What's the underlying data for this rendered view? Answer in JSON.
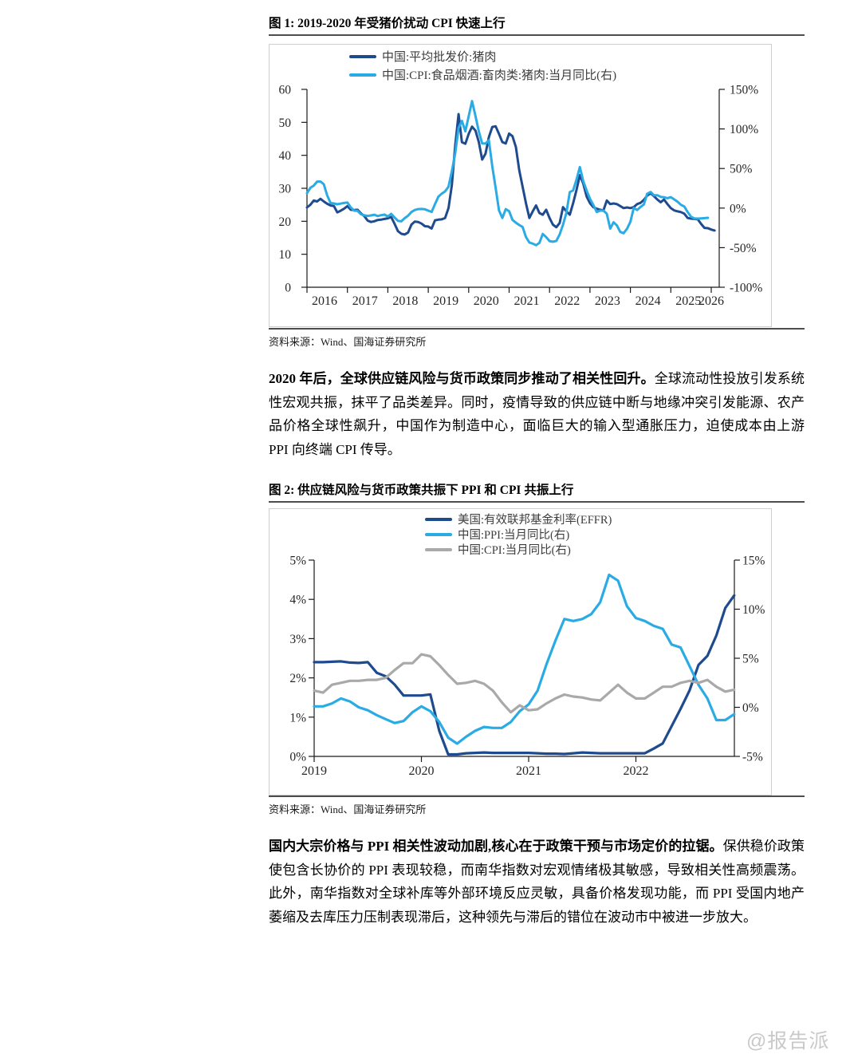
{
  "page": {
    "watermark": "@报告派"
  },
  "figure1": {
    "title": "图 1: 2019-2020 年受猪价扰动 CPI 快速上行",
    "source": "资料来源：Wind、国海证券研究所"
  },
  "figure2": {
    "title": "图 2: 供应链风险与货币政策共振下 PPI 和 CPI 共振上行",
    "source": "资料来源：Wind、国海证券研究所"
  },
  "paragraph1": {
    "bold": "2020 年后，全球供应链风险与货币政策同步推动了相关性回升。",
    "text": "全球流动性投放引发系统性宏观共振，抹平了品类差异。同时，疫情导致的供应链中断与地缘冲突引发能源、农产品价格全球性飙升，中国作为制造中心，面临巨大的输入型通胀压力，迫使成本由上游 PPI 向终端 CPI 传导。"
  },
  "paragraph2": {
    "bold": "国内大宗价格与 PPI 相关性波动加剧,核心在于政策干预与市场定价的拉锯。",
    "text": "保供稳价政策使包含长协价的 PPI 表现较稳，而南华指数对宏观情绪极其敏感，导致相关性高频震荡。此外，南华指数对全球补库等外部环境反应灵敏，具备价格发现功能，而 PPI 受国内地产萎缩及去库压力压制表现滞后，这种领先与滞后的错位在波动市中被进一步放大。"
  },
  "chart_data": [
    {
      "type": "line",
      "title": "图 1: 2019-2020 年受猪价扰动 CPI 快速上行",
      "grid": false,
      "legend_position": "top-inset",
      "x_min": 2016,
      "x_max": 2026.2,
      "x_tick_years": [
        2016,
        2017,
        2018,
        2019,
        2020,
        2021,
        2022,
        2023,
        2024,
        2025,
        2026
      ],
      "x_labels_between_ticks": true,
      "left_axis": {
        "min": 0,
        "max": 60,
        "tick_values": [
          0,
          10,
          20,
          30,
          40,
          50,
          60
        ],
        "tick_labels": [
          "0",
          "10",
          "20",
          "30",
          "40",
          "50",
          "60"
        ]
      },
      "right_axis": {
        "min": -100,
        "max": 150,
        "tick_values": [
          -100,
          -50,
          0,
          50,
          100,
          150
        ],
        "tick_labels": [
          "-100%",
          "-50%",
          "0%",
          "50%",
          "100%",
          "150%"
        ]
      },
      "series": [
        {
          "name": "中国:平均批发价:猪肉",
          "axis": "left",
          "color": "#1f4b8e",
          "start_year": 2016,
          "monthly": true,
          "values": [
            24.2,
            25.0,
            26.3,
            26.0,
            26.8,
            26.0,
            25.3,
            24.8,
            24.6,
            22.7,
            23.2,
            23.8,
            24.6,
            23.5,
            23.4,
            23.5,
            22.4,
            21.6,
            20.2,
            19.8,
            20.0,
            20.4,
            20.5,
            20.7,
            20.9,
            21.3,
            19.2,
            17.0,
            16.2,
            16.0,
            16.6,
            19.0,
            19.9,
            19.8,
            19.3,
            18.5,
            18.4,
            17.8,
            20.3,
            20.5,
            20.6,
            21.0,
            24.0,
            31.0,
            43.0,
            52.5,
            44.0,
            43.5,
            46.5,
            48.7,
            47.5,
            44.0,
            38.7,
            40.5,
            45.5,
            48.6,
            48.8,
            46.5,
            44.0,
            43.6,
            46.6,
            45.8,
            42.5,
            35.5,
            30.5,
            25.5,
            21.0,
            23.0,
            24.8,
            22.5,
            22.0,
            23.5,
            21.0,
            19.0,
            18.2,
            19.5,
            24.3,
            23.0,
            22.0,
            25.5,
            29.5,
            34.0,
            31.5,
            27.5,
            25.5,
            24.3,
            23.8,
            23.5,
            23.3,
            26.3,
            25.2,
            25.4,
            25.2,
            24.6,
            24.0,
            24.2,
            24.0,
            24.3,
            25.2,
            25.6,
            26.5,
            27.8,
            28.5,
            27.6,
            26.6,
            25.8,
            26.6,
            25.2,
            24.0,
            23.3,
            23.0,
            22.8,
            22.3,
            21.0,
            20.8,
            20.7,
            20.6,
            19.2,
            18.0,
            17.9,
            17.5,
            17.2
          ]
        },
        {
          "name": "中国:CPI:食品烟酒:畜肉类:猪肉:当月同比(右)",
          "axis": "right",
          "color": "#2aabe4",
          "start_year": 2016,
          "monthly": true,
          "values": [
            18.8,
            25.6,
            28.4,
            33.5,
            33.6,
            30.1,
            16.1,
            6.4,
            5.8,
            4.8,
            5.6,
            6.5,
            7.1,
            0.9,
            -3.2,
            -3.5,
            -7.8,
            -9.1,
            -9.9,
            -9.3,
            -8.4,
            -10.1,
            -9.0,
            -8.3,
            -10.6,
            -7.3,
            -12.0,
            -16.1,
            -16.7,
            -12.8,
            -9.6,
            -4.9,
            -2.4,
            -1.3,
            -1.1,
            -1.5,
            -3.2,
            -4.8,
            5.1,
            14.4,
            18.2,
            21.1,
            27.0,
            46.7,
            69.3,
            101.3,
            110.2,
            97.0,
            116.0,
            135.2,
            116.4,
            96.9,
            81.7,
            81.6,
            85.7,
            52.6,
            25.5,
            -2.8,
            -12.5,
            -1.3,
            -3.9,
            -14.9,
            -18.4,
            -21.4,
            -23.8,
            -36.5,
            -43.5,
            -44.9,
            -46.9,
            -44.0,
            -32.7,
            -36.7,
            -41.6,
            -42.5,
            -41.4,
            -33.3,
            -21.1,
            -6.0,
            20.2,
            22.4,
            36.0,
            51.8,
            34.4,
            22.2,
            11.8,
            3.9,
            -4.9,
            -3.2,
            -3.2,
            -7.2,
            -26.0,
            -17.9,
            -22.0,
            -30.1,
            -31.8,
            -26.1,
            -17.3,
            0.2,
            -2.4,
            1.4,
            4.6,
            18.1,
            20.4,
            16.1,
            16.2,
            14.2,
            13.7,
            12.5,
            13.8,
            11.0,
            8.0,
            4.1,
            2.0,
            -5.0,
            -11.0,
            -13.0,
            -13.3,
            -13.0,
            -12.7,
            -12.3
          ]
        }
      ]
    },
    {
      "type": "line",
      "title": "图 2: 供应链风险与货币政策共振下 PPI 和 CPI 共振上行",
      "grid": false,
      "legend_position": "top-inset",
      "x_min": 2019,
      "x_max": 2022.92,
      "x_tick_years": [
        2019,
        2020,
        2021,
        2022
      ],
      "x_labels_between_ticks": false,
      "left_axis": {
        "min": 0,
        "max": 5,
        "tick_values": [
          0,
          1,
          2,
          3,
          4,
          5
        ],
        "tick_labels": [
          "0%",
          "1%",
          "2%",
          "3%",
          "4%",
          "5%"
        ]
      },
      "right_axis": {
        "min": -5,
        "max": 15,
        "tick_values": [
          -5,
          0,
          5,
          10,
          15
        ],
        "tick_labels": [
          "-5%",
          "0%",
          "5%",
          "10%",
          "15%"
        ]
      },
      "series": [
        {
          "name": "美国:有效联邦基金利率(EFFR)",
          "axis": "left",
          "color": "#1f4b8e",
          "start_year": 2019,
          "monthly": true,
          "values": [
            2.4,
            2.4,
            2.41,
            2.42,
            2.39,
            2.38,
            2.4,
            2.13,
            2.04,
            1.83,
            1.55,
            1.55,
            1.55,
            1.58,
            0.65,
            0.05,
            0.05,
            0.08,
            0.09,
            0.1,
            0.09,
            0.09,
            0.09,
            0.09,
            0.09,
            0.08,
            0.07,
            0.07,
            0.06,
            0.08,
            0.1,
            0.09,
            0.08,
            0.08,
            0.08,
            0.08,
            0.08,
            0.08,
            0.2,
            0.33,
            0.77,
            1.21,
            1.68,
            2.33,
            2.56,
            3.08,
            3.78,
            4.1
          ]
        },
        {
          "name": "中国:PPI:当月同比(右)",
          "axis": "right",
          "color": "#2aabe4",
          "start_year": 2019,
          "monthly": true,
          "values": [
            0.1,
            0.1,
            0.4,
            0.9,
            0.6,
            0.0,
            -0.3,
            -0.8,
            -1.2,
            -1.6,
            -1.4,
            -0.5,
            0.1,
            -0.4,
            -1.5,
            -3.1,
            -3.7,
            -3.0,
            -2.4,
            -2.0,
            -2.1,
            -2.1,
            -1.5,
            -0.4,
            0.3,
            1.7,
            4.4,
            6.8,
            9.0,
            8.8,
            9.0,
            9.5,
            10.7,
            13.5,
            12.9,
            10.3,
            9.1,
            8.8,
            8.3,
            8.0,
            6.4,
            6.1,
            4.2,
            2.3,
            0.9,
            -1.3,
            -1.3,
            -0.7
          ]
        },
        {
          "name": "中国:CPI:当月同比(右)",
          "axis": "right",
          "color": "#a9a9a9",
          "start_year": 2019,
          "monthly": true,
          "values": [
            1.7,
            1.5,
            2.3,
            2.5,
            2.7,
            2.7,
            2.8,
            2.8,
            3.0,
            3.8,
            4.5,
            4.5,
            5.4,
            5.2,
            4.3,
            3.3,
            2.4,
            2.5,
            2.7,
            2.4,
            1.7,
            0.5,
            -0.5,
            0.2,
            -0.3,
            -0.2,
            0.4,
            0.9,
            1.3,
            1.1,
            1.0,
            0.8,
            0.7,
            1.5,
            2.3,
            1.5,
            0.9,
            0.9,
            1.5,
            2.1,
            2.1,
            2.5,
            2.7,
            2.5,
            2.8,
            2.1,
            1.6,
            1.8
          ]
        }
      ]
    }
  ]
}
